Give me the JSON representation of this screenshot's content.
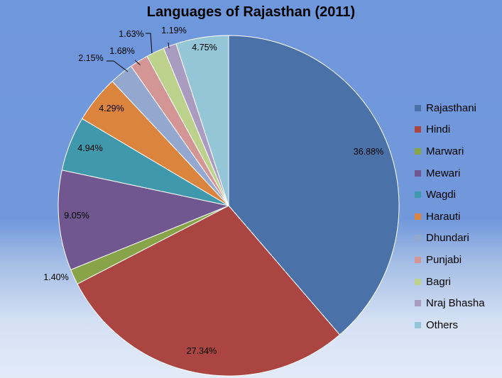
{
  "chart_data": {
    "type": "pie",
    "title": "Languages of Rajasthan (2011)",
    "start_angle_deg": 0,
    "direction": "clockwise",
    "legend_position": "right",
    "slices": [
      {
        "name": "Rajasthani",
        "value": 36.88,
        "label": "36.88%",
        "color": "#4a72a8"
      },
      {
        "name": "Hindi",
        "value": 27.34,
        "label": "27.34%",
        "color": "#ab4541"
      },
      {
        "name": "Marwari",
        "value": 1.4,
        "label": "1.40%",
        "color": "#89a448"
      },
      {
        "name": "Mewari",
        "value": 9.05,
        "label": "9.05%",
        "color": "#70578f"
      },
      {
        "name": "Wagdi",
        "value": 4.94,
        "label": "4.94%",
        "color": "#4098ac"
      },
      {
        "name": "Harauti",
        "value": 4.29,
        "label": "4.29%",
        "color": "#db843d"
      },
      {
        "name": "Dhundari",
        "value": 2.15,
        "label": "2.15%",
        "color": "#94a8cf"
      },
      {
        "name": "Punjabi",
        "value": 1.68,
        "label": "1.68%",
        "color": "#d49694"
      },
      {
        "name": "Bagri",
        "value": 1.63,
        "label": "1.63%",
        "color": "#bcd28c"
      },
      {
        "name": "Nraj Bhasha",
        "value": 1.19,
        "label": "1.19%",
        "color": "#aa9bc1"
      },
      {
        "name": "Others",
        "value": 4.75,
        "label": "4.75%",
        "color": "#94c6d8"
      }
    ]
  }
}
